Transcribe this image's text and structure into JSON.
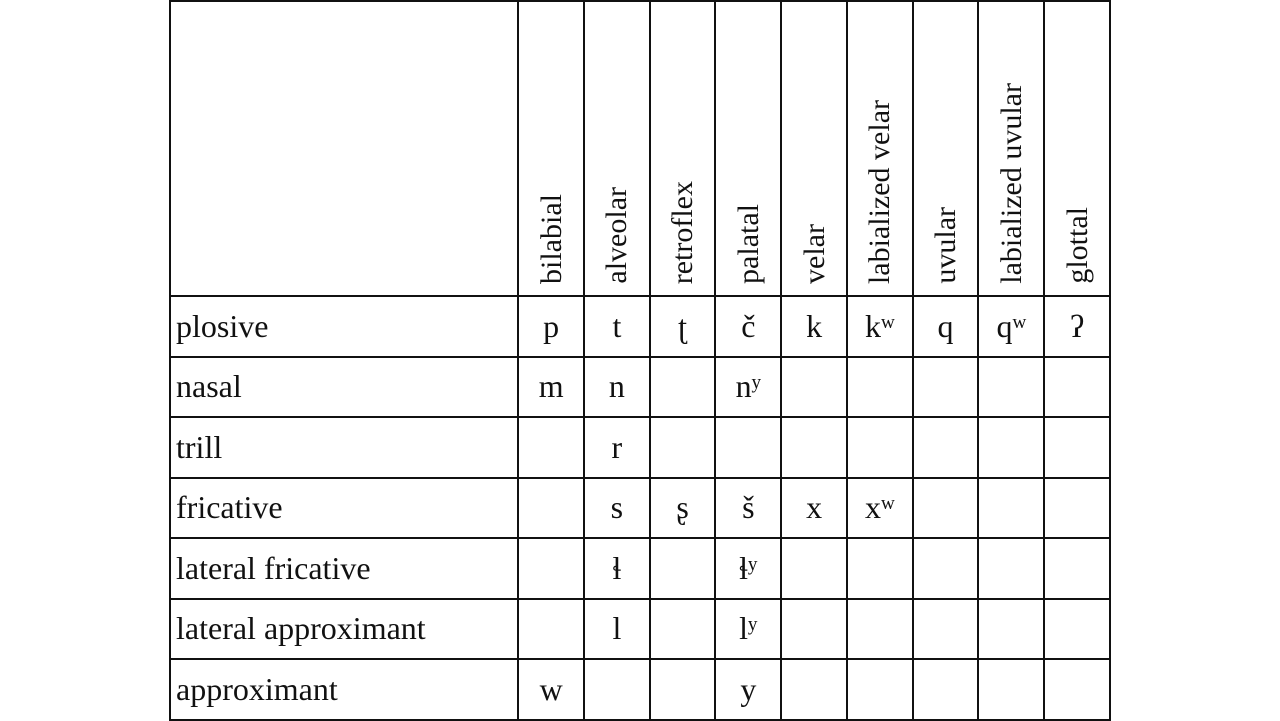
{
  "table": {
    "columns": [
      "bilabial",
      "alveolar",
      "retroflex",
      "palatal",
      "velar",
      "labialized velar",
      "uvular",
      "labialized uvular",
      "glottal"
    ],
    "rows": [
      {
        "label": "plosive",
        "cells": [
          "p",
          "t",
          "ʈ",
          "č",
          "k",
          "kʷ",
          "q",
          "qʷ",
          "ʔ"
        ]
      },
      {
        "label": "nasal",
        "cells": [
          "m",
          "n",
          null,
          "nʸ",
          null,
          null,
          null,
          null,
          null
        ]
      },
      {
        "label": "trill",
        "cells": [
          null,
          "r",
          null,
          null,
          null,
          null,
          null,
          null,
          null
        ]
      },
      {
        "label": "fricative",
        "cells": [
          null,
          "s",
          "ʂ",
          "š",
          "x",
          "xʷ",
          null,
          null,
          null
        ]
      },
      {
        "label": "lateral fricative",
        "cells": [
          null,
          "ɬ",
          null,
          "ɬʸ",
          null,
          null,
          null,
          null,
          null
        ]
      },
      {
        "label": "lateral approximant",
        "cells": [
          null,
          "l",
          null,
          "lʸ",
          null,
          null,
          null,
          null,
          null
        ]
      },
      {
        "label": "approximant",
        "cells": [
          "w",
          null,
          null,
          "y",
          null,
          null,
          null,
          null,
          null
        ]
      }
    ]
  }
}
